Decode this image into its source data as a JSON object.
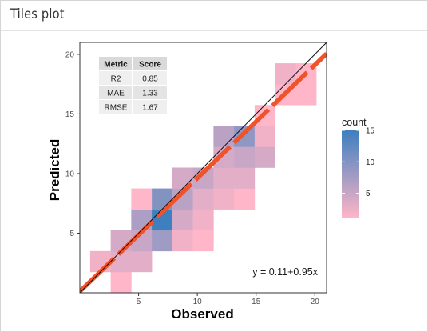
{
  "panel": {
    "title": "Tiles plot"
  },
  "chart_data": {
    "type": "heatmap",
    "xlabel": "Observed",
    "ylabel": "Predicted",
    "xlim": [
      0,
      21
    ],
    "ylim": [
      0,
      21
    ],
    "xticks": [
      5,
      10,
      15,
      20
    ],
    "yticks": [
      5,
      10,
      15,
      20
    ],
    "grid": false,
    "bin_width": 1.75,
    "colors": {
      "low": "#ffb6c8",
      "high": "#3d7fbf",
      "identity_line": "#111111",
      "fit_line": "#f0532a"
    },
    "tiles": [
      {
        "x": 0.875,
        "y": 1.75,
        "count": 2
      },
      {
        "x": 2.625,
        "y": 0.0,
        "count": 1
      },
      {
        "x": 2.625,
        "y": 1.75,
        "count": 3
      },
      {
        "x": 2.625,
        "y": 3.5,
        "count": 4
      },
      {
        "x": 4.375,
        "y": 1.75,
        "count": 3
      },
      {
        "x": 4.375,
        "y": 3.5,
        "count": 5
      },
      {
        "x": 4.375,
        "y": 5.25,
        "count": 7
      },
      {
        "x": 4.375,
        "y": 7.0,
        "count": 1
      },
      {
        "x": 6.125,
        "y": 3.5,
        "count": 8
      },
      {
        "x": 6.125,
        "y": 5.25,
        "count": 15
      },
      {
        "x": 6.125,
        "y": 7.0,
        "count": 10
      },
      {
        "x": 7.875,
        "y": 3.5,
        "count": 2
      },
      {
        "x": 7.875,
        "y": 5.25,
        "count": 4
      },
      {
        "x": 7.875,
        "y": 7.0,
        "count": 6
      },
      {
        "x": 7.875,
        "y": 8.75,
        "count": 4
      },
      {
        "x": 9.625,
        "y": 3.5,
        "count": 1
      },
      {
        "x": 9.625,
        "y": 5.25,
        "count": 2
      },
      {
        "x": 9.625,
        "y": 7.0,
        "count": 3
      },
      {
        "x": 9.625,
        "y": 8.75,
        "count": 5
      },
      {
        "x": 11.375,
        "y": 7.0,
        "count": 2
      },
      {
        "x": 11.375,
        "y": 8.75,
        "count": 3
      },
      {
        "x": 11.375,
        "y": 10.5,
        "count": 4
      },
      {
        "x": 11.375,
        "y": 12.25,
        "count": 6
      },
      {
        "x": 13.125,
        "y": 7.0,
        "count": 1
      },
      {
        "x": 13.125,
        "y": 8.75,
        "count": 3
      },
      {
        "x": 13.125,
        "y": 10.5,
        "count": 5
      },
      {
        "x": 13.125,
        "y": 12.25,
        "count": 9
      },
      {
        "x": 14.875,
        "y": 10.5,
        "count": 4
      },
      {
        "x": 14.875,
        "y": 12.25,
        "count": 2
      },
      {
        "x": 14.875,
        "y": 14.0,
        "count": 1
      },
      {
        "x": 16.625,
        "y": 15.75,
        "count": 1
      },
      {
        "x": 16.625,
        "y": 17.5,
        "count": 2
      },
      {
        "x": 18.375,
        "y": 15.75,
        "count": 1
      },
      {
        "x": 18.375,
        "y": 17.5,
        "count": 1
      }
    ],
    "identity_line": {
      "intercept": 0,
      "slope": 1
    },
    "fit_line": {
      "intercept": 0.11,
      "slope": 0.95,
      "label": "y = 0.11+0.95x"
    },
    "metrics_table": {
      "headers": [
        "Metric",
        "Score"
      ],
      "rows": [
        [
          "R2",
          "0.85"
        ],
        [
          "MAE",
          "1.33"
        ],
        [
          "RMSE",
          "1.67"
        ]
      ]
    },
    "legend": {
      "title": "count",
      "ticks": [
        5,
        10,
        15
      ],
      "min": 1,
      "max": 15
    }
  }
}
